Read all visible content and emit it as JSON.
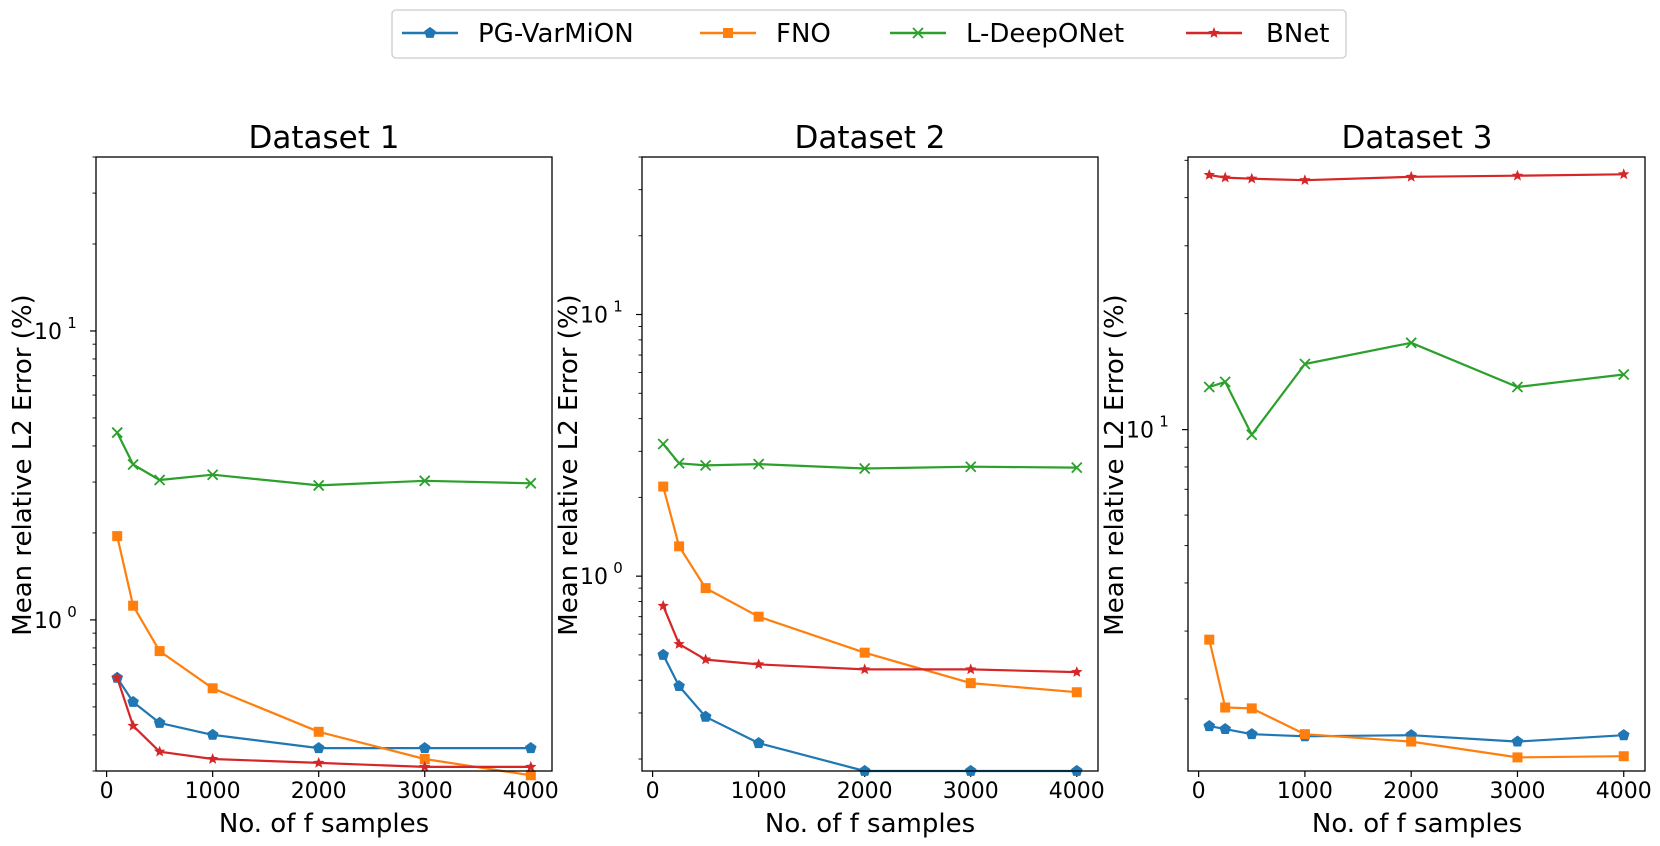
{
  "legend": [
    {
      "name": "PG-VarMiON",
      "color": "#1f77b4",
      "marker": "pentagon"
    },
    {
      "name": "FNO",
      "color": "#ff7f0e",
      "marker": "square"
    },
    {
      "name": "L-DeepONet",
      "color": "#2ca02c",
      "marker": "x"
    },
    {
      "name": "BNet",
      "color": "#d62728",
      "marker": "star"
    }
  ],
  "chart_data": [
    {
      "type": "line",
      "yscale": "log",
      "title": "Dataset 1",
      "xlabel": "No. of f samples",
      "ylabel": "Mean relative L2 Error (%)",
      "xlim": [
        -100,
        4200
      ],
      "ylim": [
        0.3,
        40
      ],
      "xticks": [
        "0",
        "1000",
        "2000",
        "3000",
        "4000"
      ],
      "ytick_labels": [
        {
          "v": 1,
          "base": "10",
          "exp": "0"
        },
        {
          "v": 10,
          "base": "10",
          "exp": "1"
        }
      ],
      "x": [
        100,
        250,
        500,
        1000,
        2000,
        3000,
        4000
      ],
      "series": [
        {
          "name": "PG-VarMiON",
          "values": [
            0.63,
            0.52,
            0.44,
            0.4,
            0.36,
            0.36,
            0.36
          ]
        },
        {
          "name": "FNO",
          "values": [
            1.95,
            1.12,
            0.78,
            0.58,
            0.41,
            0.33,
            0.29
          ]
        },
        {
          "name": "L-DeepONet",
          "values": [
            4.45,
            3.45,
            3.05,
            3.18,
            2.92,
            3.03,
            2.97
          ]
        },
        {
          "name": "BNet",
          "values": [
            0.63,
            0.43,
            0.35,
            0.33,
            0.32,
            0.31,
            0.31
          ]
        }
      ]
    },
    {
      "type": "line",
      "yscale": "log",
      "title": "Dataset 2",
      "xlabel": "No. of f samples",
      "ylabel": "Mean relative L2 Error (%)",
      "xlim": [
        -100,
        4200
      ],
      "ylim": [
        0.18,
        40
      ],
      "xticks": [
        "0",
        "1000",
        "2000",
        "3000",
        "4000"
      ],
      "ytick_labels": [
        {
          "v": 1,
          "base": "10",
          "exp": "0"
        },
        {
          "v": 10,
          "base": "10",
          "exp": "1"
        }
      ],
      "x": [
        100,
        250,
        500,
        1000,
        2000,
        3000,
        4000
      ],
      "series": [
        {
          "name": "PG-VarMiON",
          "values": [
            0.5,
            0.38,
            0.29,
            0.23,
            0.18,
            0.18,
            0.18
          ]
        },
        {
          "name": "FNO",
          "values": [
            2.2,
            1.3,
            0.9,
            0.7,
            0.51,
            0.39,
            0.36
          ]
        },
        {
          "name": "L-DeepONet",
          "values": [
            3.2,
            2.7,
            2.65,
            2.68,
            2.58,
            2.62,
            2.6
          ]
        },
        {
          "name": "BNet",
          "values": [
            0.77,
            0.55,
            0.48,
            0.46,
            0.44,
            0.44,
            0.43
          ]
        }
      ]
    },
    {
      "type": "line",
      "yscale": "log",
      "title": "Dataset 3",
      "xlabel": "No. of f samples",
      "ylabel": "Mean relative L2 Error (%)",
      "xlim": [
        -100,
        4200
      ],
      "ylim": [
        1.3,
        51
      ],
      "xticks": [
        "0",
        "1000",
        "2000",
        "3000",
        "4000"
      ],
      "ytick_labels": [
        {
          "v": 10,
          "base": "10",
          "exp": "1"
        }
      ],
      "x": [
        100,
        250,
        500,
        1000,
        2000,
        3000,
        4000
      ],
      "series": [
        {
          "name": "PG-VarMiON",
          "values": [
            1.7,
            1.67,
            1.62,
            1.6,
            1.61,
            1.55,
            1.61
          ]
        },
        {
          "name": "FNO",
          "values": [
            2.85,
            1.9,
            1.89,
            1.62,
            1.55,
            1.41,
            1.42
          ]
        },
        {
          "name": "L-DeepONet",
          "values": [
            12.9,
            13.3,
            9.7,
            14.8,
            16.8,
            12.9,
            13.9
          ]
        },
        {
          "name": "BNet",
          "values": [
            45.8,
            45.1,
            44.8,
            44.4,
            45.3,
            45.6,
            46.0
          ]
        }
      ]
    }
  ]
}
